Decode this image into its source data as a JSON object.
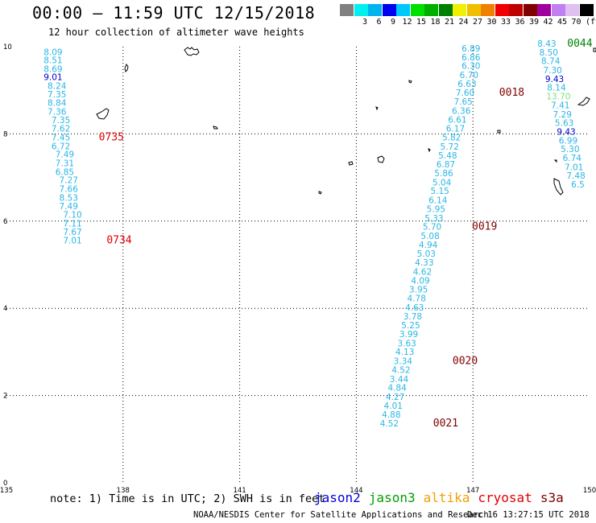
{
  "title": "00:00 – 11:59 UTC 12/15/2018",
  "subtitle": "12 hour collection of altimeter wave heights",
  "scale": {
    "unit": "(ft)",
    "swatches": [
      {
        "color": "#808080",
        "label": ""
      },
      {
        "color": "#00f0f0",
        "label": "3"
      },
      {
        "color": "#00b4f0",
        "label": "6"
      },
      {
        "color": "#0000f0",
        "label": "9"
      },
      {
        "color": "#00c8ff",
        "label": "12"
      },
      {
        "color": "#00e000",
        "label": "15"
      },
      {
        "color": "#00b000",
        "label": "18"
      },
      {
        "color": "#008000",
        "label": "21"
      },
      {
        "color": "#f0f000",
        "label": "24"
      },
      {
        "color": "#f0c000",
        "label": "27"
      },
      {
        "color": "#f08000",
        "label": "30"
      },
      {
        "color": "#f00000",
        "label": "33"
      },
      {
        "color": "#c00000",
        "label": "36"
      },
      {
        "color": "#800000",
        "label": "39"
      },
      {
        "color": "#a000a0",
        "label": "42"
      },
      {
        "color": "#c080f0",
        "label": "45"
      },
      {
        "color": "#e0c0f0",
        "label": "70"
      },
      {
        "color": "#000000",
        "label": ""
      }
    ]
  },
  "axes": {
    "x_ticks": [
      "135",
      "138",
      "141",
      "144",
      "147",
      "150"
    ],
    "y_ticks": [
      "0",
      "2",
      "4",
      "6",
      "8",
      "10"
    ],
    "x_range": [
      135,
      150
    ],
    "y_range": [
      0,
      10
    ]
  },
  "tracks": [
    {
      "name": "cryosat-left",
      "points": [
        {
          "lon": 136.2,
          "lat": 9.81,
          "v": "8.09",
          "c": "#29b6e6"
        },
        {
          "lon": 136.2,
          "lat": 9.62,
          "v": "8.51",
          "c": "#29b6e6"
        },
        {
          "lon": 136.2,
          "lat": 9.42,
          "v": "8.69",
          "c": "#29b6e6"
        },
        {
          "lon": 136.2,
          "lat": 9.23,
          "v": "9.01",
          "c": "#0000c8"
        },
        {
          "lon": 136.3,
          "lat": 9.03,
          "v": "8.24",
          "c": "#29b6e6"
        },
        {
          "lon": 136.3,
          "lat": 8.84,
          "v": "7.35",
          "c": "#29b6e6"
        },
        {
          "lon": 136.3,
          "lat": 8.64,
          "v": "8.84",
          "c": "#29b6e6"
        },
        {
          "lon": 136.3,
          "lat": 8.44,
          "v": "7.36",
          "c": "#29b6e6"
        },
        {
          "lon": 136.4,
          "lat": 8.25,
          "v": "7.35",
          "c": "#29b6e6"
        },
        {
          "lon": 136.4,
          "lat": 8.05,
          "v": "7.62",
          "c": "#29b6e6"
        },
        {
          "lon": 136.4,
          "lat": 7.85,
          "v": "7.45",
          "c": "#29b6e6"
        },
        {
          "lon": 136.4,
          "lat": 7.65,
          "v": "6.72",
          "c": "#29b6e6"
        },
        {
          "lon": 136.5,
          "lat": 7.46,
          "v": "7.49",
          "c": "#29b6e6"
        },
        {
          "lon": 136.5,
          "lat": 7.26,
          "v": "7.31",
          "c": "#29b6e6"
        },
        {
          "lon": 136.5,
          "lat": 7.06,
          "v": "6.85",
          "c": "#29b6e6"
        },
        {
          "lon": 136.6,
          "lat": 6.87,
          "v": "7.27",
          "c": "#29b6e6"
        },
        {
          "lon": 136.6,
          "lat": 6.67,
          "v": "7.66",
          "c": "#29b6e6"
        },
        {
          "lon": 136.6,
          "lat": 6.47,
          "v": "8.53",
          "c": "#29b6e6"
        },
        {
          "lon": 136.6,
          "lat": 6.27,
          "v": "7.49",
          "c": "#29b6e6"
        },
        {
          "lon": 136.7,
          "lat": 6.08,
          "v": "7.10",
          "c": "#29b6e6"
        },
        {
          "lon": 136.7,
          "lat": 5.88,
          "v": "7.11",
          "c": "#29b6e6"
        },
        {
          "lon": 136.7,
          "lat": 5.68,
          "v": "7.67",
          "c": "#29b6e6"
        },
        {
          "lon": 136.7,
          "lat": 5.49,
          "v": "7.01",
          "c": "#29b6e6"
        }
      ],
      "times": [
        {
          "lon": 137.7,
          "lat": 7.85,
          "t": "0735",
          "c": "#e00000"
        },
        {
          "lon": 137.9,
          "lat": 5.49,
          "t": "0734",
          "c": "#e00000"
        }
      ]
    },
    {
      "name": "s3a-middle",
      "points": [
        {
          "lon": 146.95,
          "lat": 9.89,
          "v": "6.89",
          "c": "#29b6e6"
        },
        {
          "lon": 146.95,
          "lat": 9.69,
          "v": "6.86",
          "c": "#29b6e6"
        },
        {
          "lon": 146.95,
          "lat": 9.49,
          "v": "6.30",
          "c": "#29b6e6"
        },
        {
          "lon": 146.9,
          "lat": 9.28,
          "v": "6.70",
          "c": "#29b6e6"
        },
        {
          "lon": 146.85,
          "lat": 9.08,
          "v": "6.63",
          "c": "#29b6e6"
        },
        {
          "lon": 146.8,
          "lat": 8.87,
          "v": "7.60",
          "c": "#29b6e6"
        },
        {
          "lon": 146.75,
          "lat": 8.67,
          "v": "7.65",
          "c": "#29b6e6"
        },
        {
          "lon": 146.7,
          "lat": 8.46,
          "v": "6.36",
          "c": "#29b6e6"
        },
        {
          "lon": 146.6,
          "lat": 8.26,
          "v": "6.61",
          "c": "#29b6e6"
        },
        {
          "lon": 146.55,
          "lat": 8.05,
          "v": "6.17",
          "c": "#29b6e6"
        },
        {
          "lon": 146.45,
          "lat": 7.85,
          "v": "5.82",
          "c": "#29b6e6"
        },
        {
          "lon": 146.4,
          "lat": 7.64,
          "v": "5.72",
          "c": "#29b6e6"
        },
        {
          "lon": 146.35,
          "lat": 7.44,
          "v": "5.48",
          "c": "#29b6e6"
        },
        {
          "lon": 146.3,
          "lat": 7.23,
          "v": "6.87",
          "c": "#29b6e6"
        },
        {
          "lon": 146.25,
          "lat": 7.03,
          "v": "5.86",
          "c": "#29b6e6"
        },
        {
          "lon": 146.2,
          "lat": 6.82,
          "v": "5.04",
          "c": "#29b6e6"
        },
        {
          "lon": 146.15,
          "lat": 6.62,
          "v": "5.15",
          "c": "#29b6e6"
        },
        {
          "lon": 146.1,
          "lat": 6.41,
          "v": "6.14",
          "c": "#29b6e6"
        },
        {
          "lon": 146.05,
          "lat": 6.21,
          "v": "5.95",
          "c": "#29b6e6"
        },
        {
          "lon": 146.0,
          "lat": 6.0,
          "v": "5.33",
          "c": "#29b6e6"
        },
        {
          "lon": 145.95,
          "lat": 5.8,
          "v": "5.70",
          "c": "#29b6e6"
        },
        {
          "lon": 145.9,
          "lat": 5.59,
          "v": "5.08",
          "c": "#29b6e6"
        },
        {
          "lon": 145.85,
          "lat": 5.39,
          "v": "4.94",
          "c": "#29b6e6"
        },
        {
          "lon": 145.8,
          "lat": 5.18,
          "v": "5.03",
          "c": "#29b6e6"
        },
        {
          "lon": 145.75,
          "lat": 4.98,
          "v": "4.33",
          "c": "#29b6e6"
        },
        {
          "lon": 145.7,
          "lat": 4.77,
          "v": "4.62",
          "c": "#29b6e6"
        },
        {
          "lon": 145.65,
          "lat": 4.57,
          "v": "4.09",
          "c": "#29b6e6"
        },
        {
          "lon": 145.6,
          "lat": 4.36,
          "v": "3.95",
          "c": "#29b6e6"
        },
        {
          "lon": 145.55,
          "lat": 4.16,
          "v": "4.78",
          "c": "#29b6e6"
        },
        {
          "lon": 145.5,
          "lat": 3.95,
          "v": "4.63",
          "c": "#29b6e6"
        },
        {
          "lon": 145.45,
          "lat": 3.75,
          "v": "3.78",
          "c": "#29b6e6"
        },
        {
          "lon": 145.4,
          "lat": 3.54,
          "v": "5.25",
          "c": "#29b6e6"
        },
        {
          "lon": 145.35,
          "lat": 3.34,
          "v": "3.99",
          "c": "#29b6e6"
        },
        {
          "lon": 145.3,
          "lat": 3.13,
          "v": "3.63",
          "c": "#29b6e6"
        },
        {
          "lon": 145.25,
          "lat": 2.93,
          "v": "4.13",
          "c": "#29b6e6"
        },
        {
          "lon": 145.2,
          "lat": 2.72,
          "v": "3.34",
          "c": "#29b6e6"
        },
        {
          "lon": 145.15,
          "lat": 2.52,
          "v": "4.52",
          "c": "#29b6e6"
        },
        {
          "lon": 145.1,
          "lat": 2.31,
          "v": "3.44",
          "c": "#29b6e6"
        },
        {
          "lon": 145.05,
          "lat": 2.11,
          "v": "4.84",
          "c": "#29b6e6"
        },
        {
          "lon": 145.0,
          "lat": 1.9,
          "v": "4.27",
          "c": "#29b6e6"
        },
        {
          "lon": 144.95,
          "lat": 1.7,
          "v": "4.01",
          "c": "#29b6e6"
        },
        {
          "lon": 144.9,
          "lat": 1.49,
          "v": "4.88",
          "c": "#29b6e6"
        },
        {
          "lon": 144.85,
          "lat": 1.29,
          "v": "4.52",
          "c": "#29b6e6"
        }
      ],
      "times": [
        {
          "lon": 148.0,
          "lat": 8.87,
          "t": "0018",
          "c": "#800000"
        },
        {
          "lon": 147.3,
          "lat": 5.8,
          "t": "0019",
          "c": "#800000"
        },
        {
          "lon": 146.8,
          "lat": 2.72,
          "t": "0020",
          "c": "#800000"
        },
        {
          "lon": 146.3,
          "lat": 1.29,
          "t": "0021",
          "c": "#800000"
        }
      ]
    },
    {
      "name": "jason3-right",
      "points": [
        {
          "lon": 148.9,
          "lat": 10.0,
          "v": "8.43",
          "c": "#29b6e6"
        },
        {
          "lon": 148.95,
          "lat": 9.8,
          "v": "8.50",
          "c": "#29b6e6"
        },
        {
          "lon": 149.0,
          "lat": 9.6,
          "v": "8.74",
          "c": "#29b6e6"
        },
        {
          "lon": 149.05,
          "lat": 9.39,
          "v": "7.30",
          "c": "#29b6e6"
        },
        {
          "lon": 149.1,
          "lat": 9.19,
          "v": "9.43",
          "c": "#0000c8"
        },
        {
          "lon": 149.15,
          "lat": 8.99,
          "v": "8.14",
          "c": "#29b6e6"
        },
        {
          "lon": 149.2,
          "lat": 8.79,
          "v": "13.70",
          "c": "#7ee07e"
        },
        {
          "lon": 149.25,
          "lat": 8.59,
          "v": "7.41",
          "c": "#29b6e6"
        },
        {
          "lon": 149.3,
          "lat": 8.38,
          "v": "7.29",
          "c": "#29b6e6"
        },
        {
          "lon": 149.35,
          "lat": 8.18,
          "v": "5.63",
          "c": "#29b6e6"
        },
        {
          "lon": 149.4,
          "lat": 7.98,
          "v": "9.43",
          "c": "#0000c8"
        },
        {
          "lon": 149.45,
          "lat": 7.78,
          "v": "6.99",
          "c": "#29b6e6"
        },
        {
          "lon": 149.5,
          "lat": 7.58,
          "v": "5.30",
          "c": "#29b6e6"
        },
        {
          "lon": 149.55,
          "lat": 7.38,
          "v": "6.74",
          "c": "#29b6e6"
        },
        {
          "lon": 149.6,
          "lat": 7.17,
          "v": "7.01",
          "c": "#29b6e6"
        },
        {
          "lon": 149.65,
          "lat": 6.97,
          "v": "7.48",
          "c": "#29b6e6"
        },
        {
          "lon": 149.7,
          "lat": 6.77,
          "v": "6.5",
          "c": "#29b6e6"
        }
      ],
      "times": [
        {
          "lon": 149.75,
          "lat": 10.0,
          "t": "0044",
          "c": "#008000"
        }
      ]
    }
  ],
  "note": "note: 1) Time is in UTC; 2) SWH is in feet",
  "legend": [
    {
      "label": "jason2",
      "color": "#0000e0"
    },
    {
      "label": "jason3",
      "color": "#00a000"
    },
    {
      "label": "altika",
      "color": "#f0a000"
    },
    {
      "label": "cryosat",
      "color": "#e00000"
    },
    {
      "label": "s3a",
      "color": "#800000"
    }
  ],
  "credit": "NOAA/NESDIS Center for Satellite Applications and Research",
  "timestamp": "Dec 16 13:27:15 UTC 2018"
}
